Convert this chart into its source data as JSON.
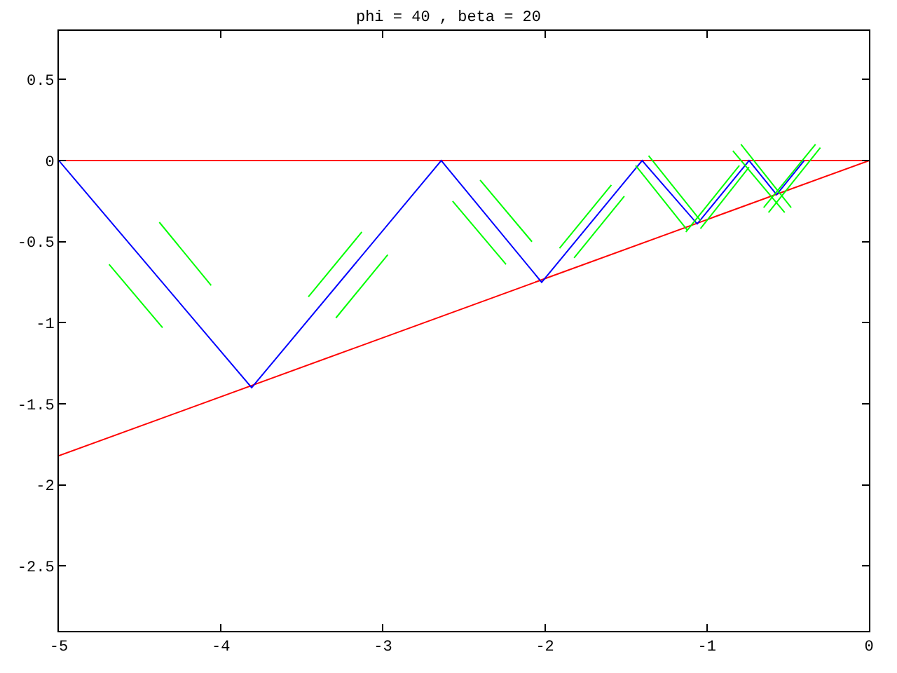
{
  "chart_data": {
    "type": "line",
    "title": "phi = 40 , beta = 20",
    "xlim": [
      -5,
      0
    ],
    "xticks": [
      -5,
      -4,
      -3,
      -2,
      -1,
      0
    ],
    "ylim": [
      -2.9,
      0.8
    ],
    "yticks": [
      -2.5,
      -2,
      -1.5,
      -1,
      -0.5,
      0,
      0.5
    ],
    "marker": "none",
    "line_style": "solid",
    "series": [
      {
        "color": "#ff0000",
        "x": [
          -5,
          0
        ],
        "values": [
          0,
          0
        ]
      },
      {
        "color": "#ff0000",
        "x": [
          -5,
          0
        ],
        "values": [
          -1.82,
          0
        ]
      },
      {
        "color": "#0000ff",
        "x": [
          -5,
          -3.81,
          -2.64,
          -2.02,
          -1.4,
          -1.06,
          -0.74,
          -0.57,
          -0.4
        ],
        "values": [
          0,
          -1.4,
          0,
          -0.75,
          0,
          -0.39,
          0,
          -0.21,
          0
        ]
      },
      {
        "color": "#00ff00",
        "x": [
          -4.69,
          -4.36,
          null,
          -4.38,
          -4.06,
          null,
          -3.46,
          -3.13,
          null,
          -3.29,
          -2.97,
          null,
          -2.57,
          -2.24,
          null,
          -2.4,
          -2.08,
          null,
          -1.91,
          -1.59,
          null,
          -1.82,
          -1.51,
          null,
          -1.44,
          -1.12,
          null,
          -1.36,
          -1.04,
          null,
          -1.13,
          -0.8,
          null,
          -1.04,
          -0.74,
          null,
          -0.84,
          -0.52,
          null,
          -0.79,
          -0.48,
          null,
          -0.65,
          -0.33,
          null,
          -0.62,
          -0.3
        ],
        "values": [
          -0.64,
          -1.03,
          null,
          -0.38,
          -0.77,
          null,
          -0.84,
          -0.44,
          null,
          -0.97,
          -0.58,
          null,
          -0.25,
          -0.64,
          null,
          -0.12,
          -0.5,
          null,
          -0.54,
          -0.15,
          null,
          -0.6,
          -0.22,
          null,
          -0.03,
          -0.43,
          null,
          0.03,
          -0.37,
          null,
          -0.44,
          -0.03,
          null,
          -0.42,
          -0.04,
          null,
          0.06,
          -0.32,
          null,
          0.1,
          -0.29,
          null,
          -0.29,
          0.1,
          null,
          -0.32,
          0.08
        ]
      }
    ]
  }
}
